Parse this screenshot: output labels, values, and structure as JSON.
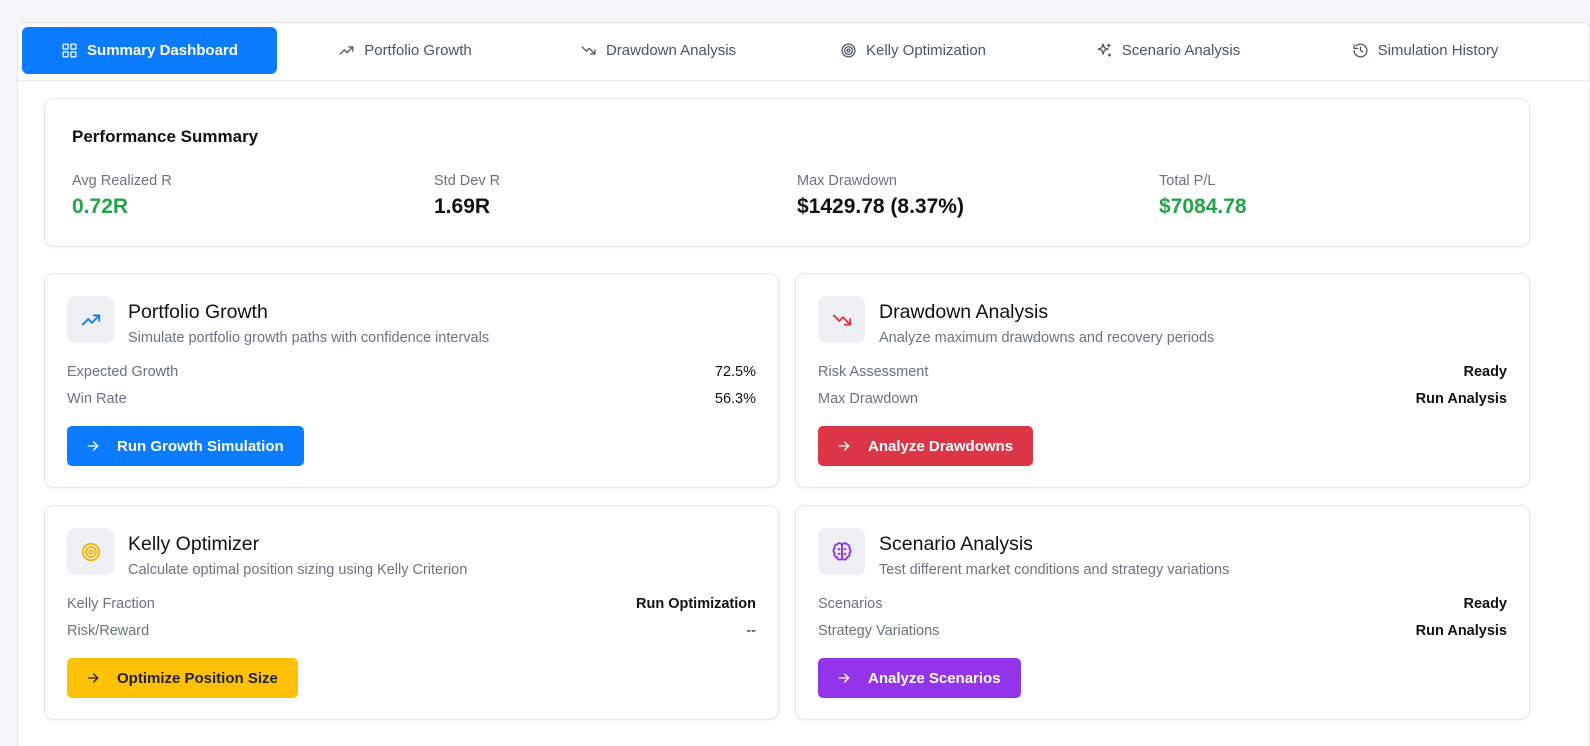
{
  "tabs": [
    {
      "label": "Summary Dashboard",
      "icon": "grid-icon",
      "active": true
    },
    {
      "label": "Portfolio Growth",
      "icon": "trending-up-icon"
    },
    {
      "label": "Drawdown Analysis",
      "icon": "trending-down-icon"
    },
    {
      "label": "Kelly Optimization",
      "icon": "target-icon"
    },
    {
      "label": "Scenario Analysis",
      "icon": "sparkles-icon"
    },
    {
      "label": "Simulation History",
      "icon": "history-icon"
    }
  ],
  "performance": {
    "title": "Performance Summary",
    "metrics": [
      {
        "label": "Avg Realized R",
        "value": "0.72R",
        "color": "#22a447"
      },
      {
        "label": "Std Dev R",
        "value": "1.69R"
      },
      {
        "label": "Max Drawdown",
        "value": "$1429.78 (8.37%)"
      },
      {
        "label": "Total P/L",
        "value": "$7084.78",
        "color": "#22a447"
      }
    ]
  },
  "cards": {
    "growth": {
      "title": "Portfolio Growth",
      "description": "Simulate portfolio growth paths with confidence intervals",
      "icon": "trending-up-icon",
      "rows": [
        {
          "label": "Expected Growth",
          "value": "72.5%"
        },
        {
          "label": "Win Rate",
          "value": "56.3%"
        }
      ],
      "button": "Run Growth Simulation",
      "accent": "#0b7bff"
    },
    "drawdown": {
      "title": "Drawdown Analysis",
      "description": "Analyze maximum drawdowns and recovery periods",
      "icon": "trending-down-icon",
      "rows": [
        {
          "label": "Risk Assessment",
          "value": "Ready"
        },
        {
          "label": "Max Drawdown",
          "value": "Run Analysis"
        }
      ],
      "button": "Analyze Drawdowns",
      "accent": "#dc3545"
    },
    "kelly": {
      "title": "Kelly Optimizer",
      "description": "Calculate optimal position sizing using Kelly Criterion",
      "icon": "target-icon",
      "rows": [
        {
          "label": "Kelly Fraction",
          "value": "Run Optimization"
        },
        {
          "label": "Risk/Reward",
          "value": "--"
        }
      ],
      "button": "Optimize Position Size",
      "accent": "#ffc107"
    },
    "scenario": {
      "title": "Scenario Analysis",
      "description": "Test different market conditions and strategy variations",
      "icon": "brain-icon",
      "rows": [
        {
          "label": "Scenarios",
          "value": "Ready"
        },
        {
          "label": "Strategy Variations",
          "value": "Run Analysis"
        }
      ],
      "button": "Analyze Scenarios",
      "accent": "#9333ea"
    }
  }
}
